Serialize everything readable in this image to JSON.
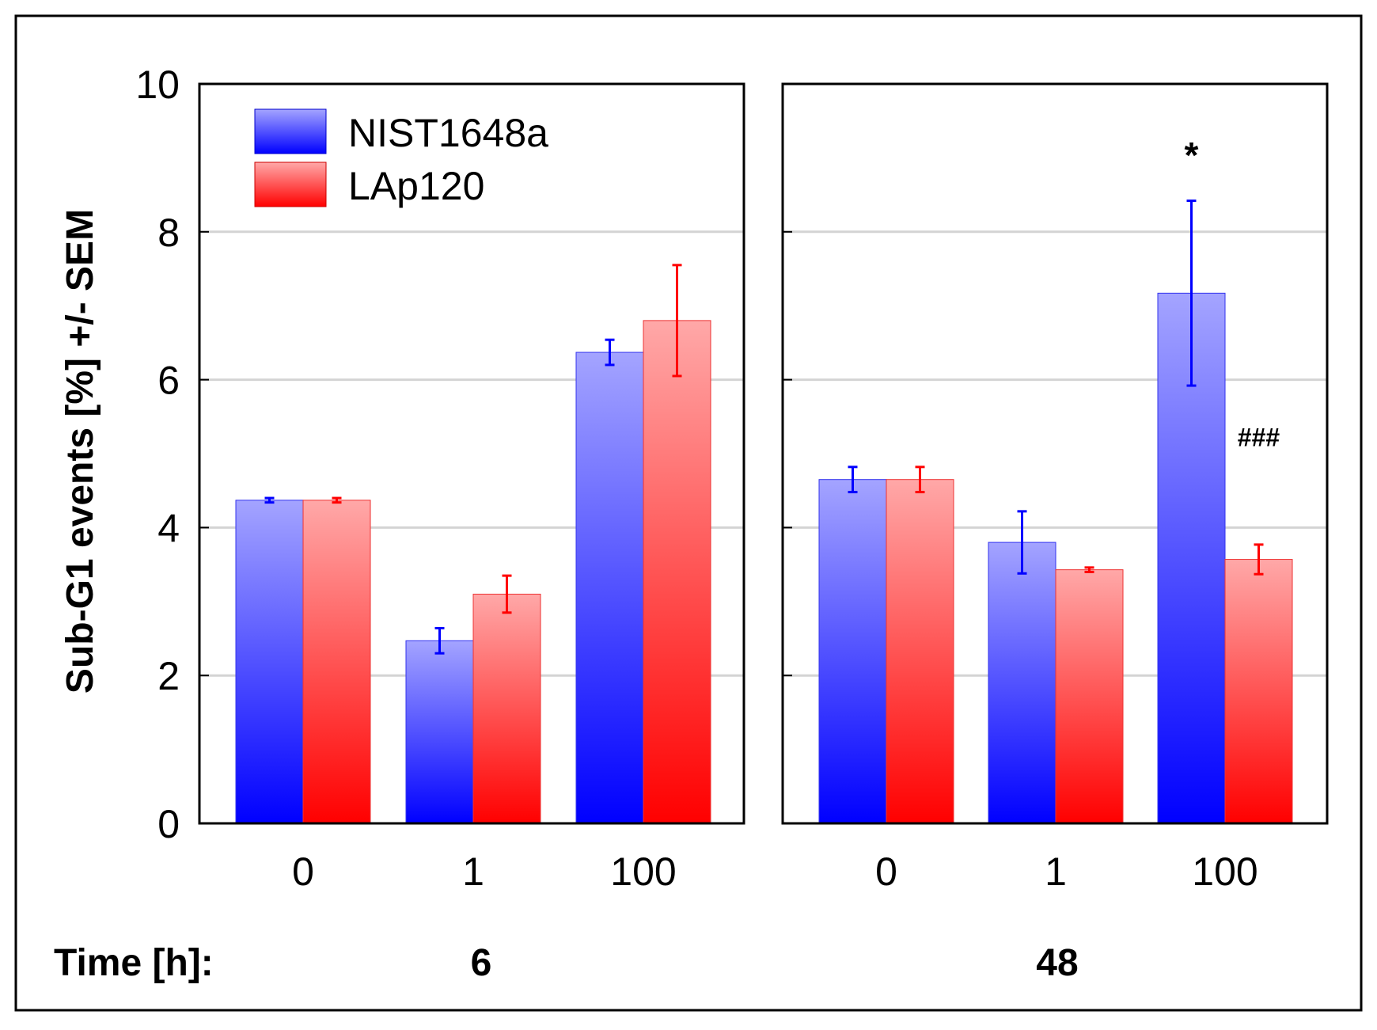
{
  "chart_data": {
    "type": "bar",
    "ylabel": "Sub-G1 events [%] +/- SEM",
    "ylim": [
      0,
      10
    ],
    "yticks": [
      0,
      2,
      4,
      6,
      8,
      10
    ],
    "grid": true,
    "legend_position": "top-left",
    "time_label": "Time [h]:",
    "series_names": [
      "NIST1648a",
      "LAp120"
    ],
    "colors": {
      "NIST1648a": "#0000ff",
      "LAp120": "#ff0000"
    },
    "panels": [
      {
        "time": "6",
        "categories": [
          "0",
          "1",
          "100"
        ],
        "series": [
          {
            "name": "NIST1648a",
            "values": [
              4.37,
              2.47,
              6.37
            ],
            "errors": [
              0.03,
              0.17,
              0.17
            ]
          },
          {
            "name": "LAp120",
            "values": [
              4.37,
              3.1,
              6.8
            ],
            "errors": [
              0.03,
              0.25,
              0.75
            ]
          }
        ],
        "annotations": []
      },
      {
        "time": "48",
        "categories": [
          "0",
          "1",
          "100"
        ],
        "series": [
          {
            "name": "NIST1648a",
            "values": [
              4.65,
              3.8,
              7.17
            ],
            "errors": [
              0.17,
              0.42,
              1.25
            ]
          },
          {
            "name": "LAp120",
            "values": [
              4.65,
              3.43,
              3.57
            ],
            "errors": [
              0.17,
              0.03,
              0.2
            ]
          }
        ],
        "annotations": [
          {
            "text": "*",
            "category": "100",
            "series": "NIST1648a",
            "y": 9.1
          },
          {
            "text": "###",
            "category": "100",
            "series": "LAp120",
            "y": 5.25
          }
        ]
      }
    ]
  }
}
